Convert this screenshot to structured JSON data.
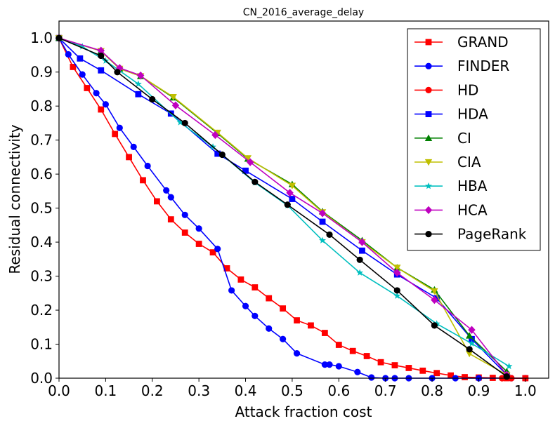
{
  "chart_data": {
    "type": "line",
    "title": "CN_2016_average_delay",
    "xlabel": "Attack fraction cost",
    "ylabel": "Residual connectivity",
    "xlim": [
      0,
      1.05
    ],
    "ylim": [
      0,
      1.05
    ],
    "xticks": [
      "0.0",
      "0.1",
      "0.2",
      "0.3",
      "0.4",
      "0.5",
      "0.6",
      "0.7",
      "0.8",
      "0.9",
      "1.0"
    ],
    "yticks": [
      "0.0",
      "0.1",
      "0.2",
      "0.3",
      "0.4",
      "0.5",
      "0.6",
      "0.7",
      "0.8",
      "0.9",
      "1.0"
    ],
    "legend_position": "top-right",
    "grid": false,
    "series": [
      {
        "name": "GRAND",
        "color": "#ff0000",
        "marker": "square",
        "x": [
          0,
          0.03,
          0.06,
          0.09,
          0.12,
          0.15,
          0.18,
          0.21,
          0.24,
          0.27,
          0.3,
          0.33,
          0.36,
          0.39,
          0.42,
          0.45,
          0.48,
          0.51,
          0.54,
          0.57,
          0.6,
          0.63,
          0.66,
          0.69,
          0.72,
          0.75,
          0.78,
          0.81,
          0.84,
          0.87,
          0.9,
          0.93,
          0.96,
          1.0
        ],
        "y": [
          1.0,
          0.915,
          0.853,
          0.79,
          0.718,
          0.65,
          0.582,
          0.52,
          0.467,
          0.428,
          0.395,
          0.37,
          0.323,
          0.29,
          0.267,
          0.235,
          0.205,
          0.17,
          0.155,
          0.133,
          0.098,
          0.08,
          0.065,
          0.047,
          0.038,
          0.03,
          0.022,
          0.015,
          0.008,
          0.003,
          0.002,
          0.001,
          0.0,
          0.0
        ]
      },
      {
        "name": "FINDER",
        "color": "#0000ff",
        "marker": "circle",
        "x": [
          0,
          0.02,
          0.05,
          0.08,
          0.1,
          0.13,
          0.16,
          0.19,
          0.23,
          0.24,
          0.27,
          0.3,
          0.34,
          0.37,
          0.4,
          0.42,
          0.45,
          0.48,
          0.51,
          0.57,
          0.58,
          0.6,
          0.64,
          0.67,
          0.7,
          0.72,
          0.75,
          0.8,
          0.85,
          0.9,
          0.97,
          1.0
        ],
        "y": [
          1.0,
          0.952,
          0.893,
          0.838,
          0.805,
          0.736,
          0.68,
          0.624,
          0.552,
          0.532,
          0.48,
          0.44,
          0.38,
          0.258,
          0.212,
          0.183,
          0.146,
          0.115,
          0.073,
          0.04,
          0.04,
          0.035,
          0.018,
          0.002,
          0.0,
          0.0,
          0.0,
          0.0,
          0.0,
          0.0,
          0.0,
          0.0
        ]
      },
      {
        "name": "HD",
        "color": "#ff0000",
        "marker": "circle",
        "x": [
          0.95,
          0.97,
          1.0
        ],
        "y": [
          0.0,
          0.0,
          0.0
        ]
      },
      {
        "name": "HDA",
        "color": "#0000ff",
        "marker": "square",
        "x": [
          0,
          0.045,
          0.09,
          0.17,
          0.24,
          0.34,
          0.4,
          0.5,
          0.565,
          0.65,
          0.725,
          0.81,
          0.885,
          0.96
        ],
        "y": [
          1.0,
          0.94,
          0.905,
          0.835,
          0.778,
          0.66,
          0.61,
          0.527,
          0.46,
          0.375,
          0.305,
          0.235,
          0.115,
          0.01
        ]
      },
      {
        "name": "CI",
        "color": "#008000",
        "marker": "triangle-up",
        "x": [
          0,
          0.09,
          0.13,
          0.175,
          0.245,
          0.34,
          0.405,
          0.5,
          0.565,
          0.65,
          0.725,
          0.805,
          0.88,
          0.96
        ],
        "y": [
          1.0,
          0.962,
          0.91,
          0.888,
          0.825,
          0.72,
          0.645,
          0.57,
          0.49,
          0.405,
          0.325,
          0.26,
          0.125,
          0.02
        ]
      },
      {
        "name": "CIA",
        "color": "#bfbf00",
        "marker": "triangle-down",
        "x": [
          0,
          0.09,
          0.13,
          0.175,
          0.245,
          0.34,
          0.405,
          0.5,
          0.565,
          0.65,
          0.725,
          0.805,
          0.88,
          0.96
        ],
        "y": [
          1.0,
          0.962,
          0.91,
          0.888,
          0.827,
          0.722,
          0.647,
          0.566,
          0.488,
          0.4,
          0.325,
          0.256,
          0.072,
          0.01
        ]
      },
      {
        "name": "HBA",
        "color": "#00bfbf",
        "marker": "star",
        "x": [
          0,
          0.05,
          0.1,
          0.17,
          0.26,
          0.33,
          0.42,
          0.49,
          0.565,
          0.645,
          0.725,
          0.81,
          0.885,
          0.965
        ],
        "y": [
          1.0,
          0.975,
          0.933,
          0.865,
          0.752,
          0.68,
          0.575,
          0.508,
          0.405,
          0.31,
          0.242,
          0.16,
          0.102,
          0.035
        ]
      },
      {
        "name": "HCA",
        "color": "#bf00bf",
        "marker": "diamond",
        "x": [
          0,
          0.09,
          0.13,
          0.175,
          0.25,
          0.335,
          0.41,
          0.495,
          0.565,
          0.65,
          0.725,
          0.805,
          0.885,
          0.96
        ],
        "y": [
          1.0,
          0.963,
          0.912,
          0.89,
          0.802,
          0.715,
          0.635,
          0.545,
          0.485,
          0.4,
          0.31,
          0.23,
          0.142,
          0.01
        ]
      },
      {
        "name": "PageRank",
        "color": "#000000",
        "marker": "circle",
        "x": [
          0,
          0.09,
          0.125,
          0.2,
          0.27,
          0.35,
          0.42,
          0.49,
          0.58,
          0.645,
          0.725,
          0.805,
          0.88,
          0.96
        ],
        "y": [
          1.0,
          0.948,
          0.9,
          0.82,
          0.75,
          0.657,
          0.577,
          0.51,
          0.422,
          0.348,
          0.258,
          0.155,
          0.085,
          0.005
        ]
      }
    ]
  }
}
